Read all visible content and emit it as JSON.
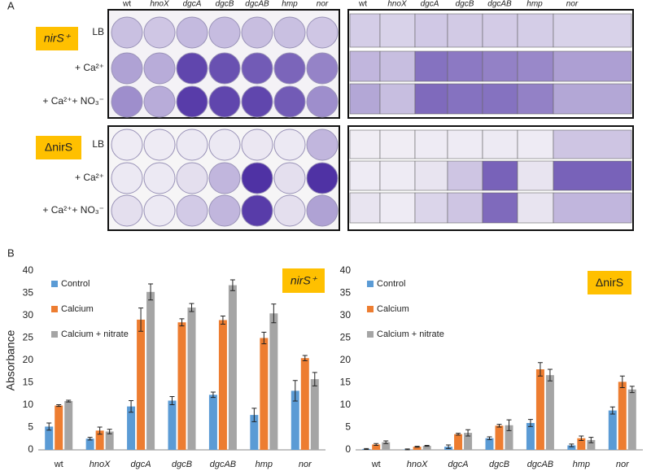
{
  "panel_labels": [
    "A",
    "B"
  ],
  "panel_a": {
    "columns": [
      "wt",
      "hnoX",
      "dgcA",
      "dgcB",
      "dgcAB",
      "hmp",
      "nor"
    ],
    "rows": [
      "LB",
      "+ Ca²⁺",
      "+ Ca²⁺+ NO₃⁻"
    ],
    "strains": [
      "nirS⁺",
      "ΔnirS"
    ]
  },
  "chart_data": [
    {
      "type": "bar",
      "title": "nirS⁺",
      "y_label": "Absorbance",
      "categories": [
        "wt",
        "hnoX",
        "dgcA",
        "dgcB",
        "dgcAB",
        "hmp",
        "nor"
      ],
      "ylim": [
        0,
        40
      ],
      "yticks": [
        0,
        5,
        10,
        15,
        20,
        25,
        30,
        35,
        40
      ],
      "grid": false,
      "series": [
        {
          "name": "Control",
          "color": "#5b9bd5",
          "values": [
            5.2,
            2.5,
            9.7,
            11,
            12.3,
            7.8,
            13.2
          ],
          "errors": [
            0.8,
            0.3,
            1.3,
            0.9,
            0.6,
            1.5,
            2.3
          ]
        },
        {
          "name": "Calcium",
          "color": "#ed7d31",
          "values": [
            9.9,
            4.3,
            29.1,
            28.5,
            29,
            25,
            20.5
          ],
          "errors": [
            0.2,
            0.8,
            2.6,
            0.8,
            0.9,
            1.3,
            0.6
          ]
        },
        {
          "name": "Calcium + nitrate",
          "color": "#a5a5a5",
          "values": [
            10.9,
            4.1,
            35.3,
            31.8,
            36.8,
            30.5,
            15.8
          ],
          "errors": [
            0.2,
            0.5,
            1.8,
            0.9,
            1.2,
            2.1,
            1.5
          ]
        }
      ]
    },
    {
      "type": "bar",
      "title": "ΔnirS",
      "categories": [
        "wt",
        "hnoX",
        "dgcA",
        "dgcB",
        "dgcAB",
        "hmp",
        "nor"
      ],
      "ylim": [
        0,
        40
      ],
      "yticks": [
        0,
        5,
        10,
        15,
        20,
        25,
        30,
        35,
        40
      ],
      "grid": false,
      "series": [
        {
          "name": "Control",
          "color": "#5b9bd5",
          "values": [
            0.2,
            0.1,
            0.7,
            2.6,
            6,
            1,
            8.8
          ],
          "errors": [
            0.1,
            0.1,
            0.4,
            0.3,
            0.8,
            0.3,
            0.8
          ]
        },
        {
          "name": "Calcium",
          "color": "#ed7d31",
          "values": [
            1.2,
            0.7,
            3.5,
            5.4,
            18,
            2.6,
            15.2
          ],
          "errors": [
            0.2,
            0.1,
            0.2,
            0.3,
            1.5,
            0.5,
            1.3
          ]
        },
        {
          "name": "Calcium + nitrate",
          "color": "#a5a5a5",
          "values": [
            1.7,
            0.9,
            3.8,
            5.5,
            16.7,
            2.2,
            13.5
          ],
          "errors": [
            0.3,
            0.1,
            0.7,
            1.2,
            1.3,
            0.6,
            0.7
          ]
        }
      ]
    }
  ]
}
